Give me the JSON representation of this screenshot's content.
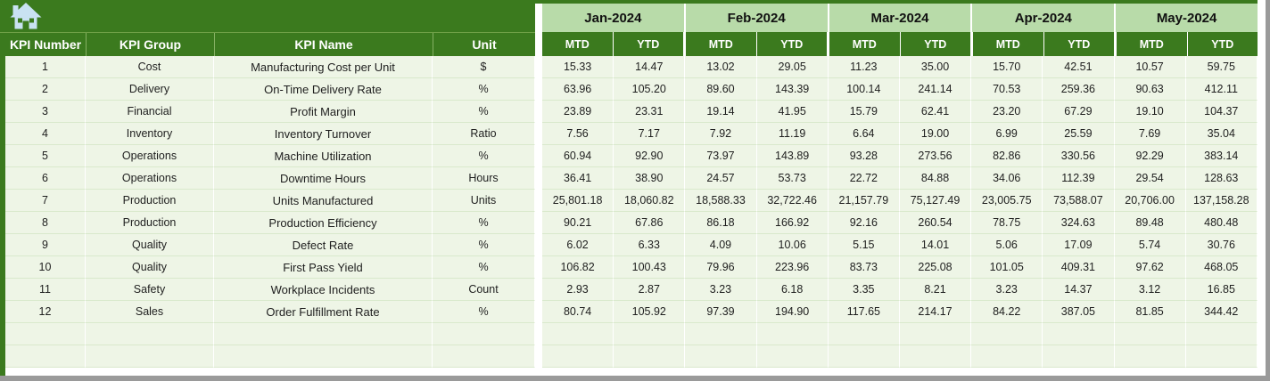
{
  "header": {
    "columns": [
      "KPI Number",
      "KPI Group",
      "KPI Name",
      "Unit"
    ],
    "months": [
      "Jan-2024",
      "Feb-2024",
      "Mar-2024",
      "Apr-2024",
      "May-2024"
    ],
    "sub_columns": [
      "MTD",
      "YTD"
    ],
    "home_icon": "home-icon"
  },
  "colors": {
    "dark_green": "#3b7a1e",
    "light_green": "#b8dba9",
    "row_bg": "#eef5e6",
    "row_border": "#d9e9cc",
    "icon_blue": "#c9e2f2",
    "edge_gray": "#9a9a9a"
  },
  "rows": [
    {
      "number": "1",
      "group": "Cost",
      "name": "Manufacturing Cost per Unit",
      "unit": "$",
      "values": [
        "15.33",
        "14.47",
        "13.02",
        "29.05",
        "11.23",
        "35.00",
        "15.70",
        "42.51",
        "10.57",
        "59.75"
      ]
    },
    {
      "number": "2",
      "group": "Delivery",
      "name": "On-Time Delivery Rate",
      "unit": "%",
      "values": [
        "63.96",
        "105.20",
        "89.60",
        "143.39",
        "100.14",
        "241.14",
        "70.53",
        "259.36",
        "90.63",
        "412.11"
      ]
    },
    {
      "number": "3",
      "group": "Financial",
      "name": "Profit Margin",
      "unit": "%",
      "values": [
        "23.89",
        "23.31",
        "19.14",
        "41.95",
        "15.79",
        "62.41",
        "23.20",
        "67.29",
        "19.10",
        "104.37"
      ]
    },
    {
      "number": "4",
      "group": "Inventory",
      "name": "Inventory Turnover",
      "unit": "Ratio",
      "values": [
        "7.56",
        "7.17",
        "7.92",
        "11.19",
        "6.64",
        "19.00",
        "6.99",
        "25.59",
        "7.69",
        "35.04"
      ]
    },
    {
      "number": "5",
      "group": "Operations",
      "name": "Machine Utilization",
      "unit": "%",
      "values": [
        "60.94",
        "92.90",
        "73.97",
        "143.89",
        "93.28",
        "273.56",
        "82.86",
        "330.56",
        "92.29",
        "383.14"
      ]
    },
    {
      "number": "6",
      "group": "Operations",
      "name": "Downtime Hours",
      "unit": "Hours",
      "values": [
        "36.41",
        "38.90",
        "24.57",
        "53.73",
        "22.72",
        "84.88",
        "34.06",
        "112.39",
        "29.54",
        "128.63"
      ]
    },
    {
      "number": "7",
      "group": "Production",
      "name": "Units Manufactured",
      "unit": "Units",
      "values": [
        "25,801.18",
        "18,060.82",
        "18,588.33",
        "32,722.46",
        "21,157.79",
        "75,127.49",
        "23,005.75",
        "73,588.07",
        "20,706.00",
        "137,158.28"
      ]
    },
    {
      "number": "8",
      "group": "Production",
      "name": "Production Efficiency",
      "unit": "%",
      "values": [
        "90.21",
        "67.86",
        "86.18",
        "166.92",
        "92.16",
        "260.54",
        "78.75",
        "324.63",
        "89.48",
        "480.48"
      ]
    },
    {
      "number": "9",
      "group": "Quality",
      "name": "Defect Rate",
      "unit": "%",
      "values": [
        "6.02",
        "6.33",
        "4.09",
        "10.06",
        "5.15",
        "14.01",
        "5.06",
        "17.09",
        "5.74",
        "30.76"
      ]
    },
    {
      "number": "10",
      "group": "Quality",
      "name": "First Pass Yield",
      "unit": "%",
      "values": [
        "106.82",
        "100.43",
        "79.96",
        "223.96",
        "83.73",
        "225.08",
        "101.05",
        "409.31",
        "97.62",
        "468.05"
      ]
    },
    {
      "number": "11",
      "group": "Safety",
      "name": "Workplace Incidents",
      "unit": "Count",
      "values": [
        "2.93",
        "2.87",
        "3.23",
        "6.18",
        "3.35",
        "8.21",
        "3.23",
        "14.37",
        "3.12",
        "16.85"
      ]
    },
    {
      "number": "12",
      "group": "Sales",
      "name": "Order Fulfillment Rate",
      "unit": "%",
      "values": [
        "80.74",
        "105.92",
        "97.39",
        "194.90",
        "117.65",
        "214.17",
        "84.22",
        "387.05",
        "81.85",
        "344.42"
      ]
    }
  ],
  "empty_row_count": 2
}
